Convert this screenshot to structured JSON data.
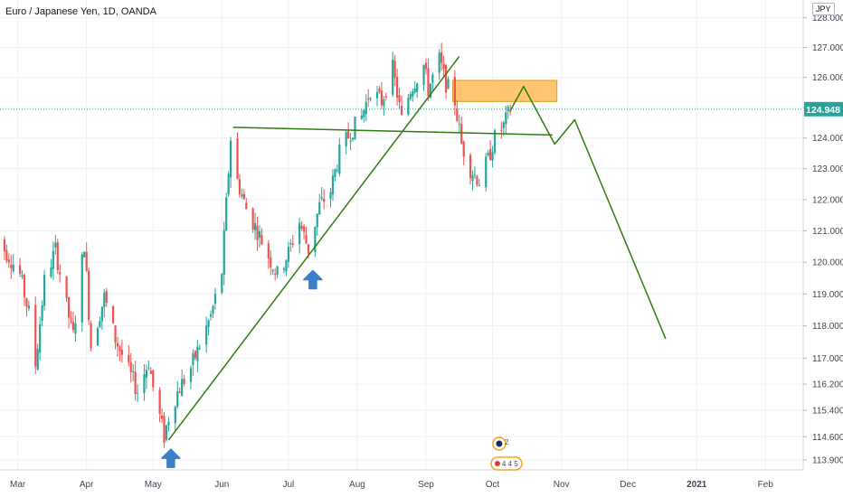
{
  "legend": {
    "title": "Euro / Japanese Yen, 1D, OANDA"
  },
  "currency_badge": "JPY",
  "price_label": {
    "value": "124.948",
    "color": "#26a69a"
  },
  "colors": {
    "up": "#26a69a",
    "down": "#ef5350",
    "drawing": "#2e7d0f",
    "zone_fill": "#ffb74d",
    "zone_border": "#d4a017",
    "arrow": "#3a7fc8",
    "grid": "#eef0f4",
    "axis_text": "#434651"
  },
  "event_markers": {
    "top_count": "2",
    "bottom_counts": "4 4 5"
  },
  "chart_data": {
    "type": "candlestick",
    "symbol": "EURJPY",
    "y_scale": "log",
    "ylim": [
      113.6,
      128.6
    ],
    "yticks": [
      "128.000",
      "127.000",
      "126.000",
      "125.000",
      "124.000",
      "123.000",
      "122.000",
      "121.000",
      "120.000",
      "119.000",
      "118.000",
      "117.000",
      "116.200",
      "115.400",
      "114.600",
      "113.900"
    ],
    "xticks": [
      {
        "label": "Mar",
        "date": "2020-03-01"
      },
      {
        "label": "Apr",
        "date": "2020-04-01"
      },
      {
        "label": "May",
        "date": "2020-05-01"
      },
      {
        "label": "Jun",
        "date": "2020-06-01"
      },
      {
        "label": "Jul",
        "date": "2020-07-01"
      },
      {
        "label": "Aug",
        "date": "2020-08-01"
      },
      {
        "label": "Sep",
        "date": "2020-09-01"
      },
      {
        "label": "Oct",
        "date": "2020-10-01"
      },
      {
        "label": "Nov",
        "date": "2020-11-01"
      },
      {
        "label": "Dec",
        "date": "2020-12-01"
      },
      {
        "label": "2021",
        "date": "2021-01-01"
      },
      {
        "label": "Feb",
        "date": "2021-02-01"
      }
    ],
    "xlim": [
      "2020-02-22",
      "2021-02-18"
    ],
    "last_price": 124.948,
    "price_path": [
      [
        "2020-02-20",
        120.8
      ],
      [
        "2020-02-26",
        120.2
      ],
      [
        "2020-03-02",
        119.6
      ],
      [
        "2020-03-06",
        118.4
      ],
      [
        "2020-03-09",
        116.8
      ],
      [
        "2020-03-13",
        119.4
      ],
      [
        "2020-03-18",
        120.4
      ],
      [
        "2020-03-23",
        118.6
      ],
      [
        "2020-03-26",
        117.7
      ],
      [
        "2020-03-31",
        120.6
      ],
      [
        "2020-04-03",
        117.4
      ],
      [
        "2020-04-09",
        118.9
      ],
      [
        "2020-04-14",
        117.6
      ],
      [
        "2020-04-20",
        116.6
      ],
      [
        "2020-04-24",
        116.0
      ],
      [
        "2020-04-29",
        116.9
      ],
      [
        "2020-05-01",
        116.1
      ],
      [
        "2020-05-06",
        114.6
      ],
      [
        "2020-05-09",
        115.5
      ],
      [
        "2020-05-13",
        116.1
      ],
      [
        "2020-05-18",
        116.7
      ],
      [
        "2020-05-22",
        117.4
      ],
      [
        "2020-05-27",
        118.3
      ],
      [
        "2020-06-01",
        119.7
      ],
      [
        "2020-06-05",
        124.0
      ],
      [
        "2020-06-08",
        122.6
      ],
      [
        "2020-06-12",
        121.7
      ],
      [
        "2020-06-17",
        121.0
      ],
      [
        "2020-06-22",
        120.2
      ],
      [
        "2020-06-26",
        119.6
      ],
      [
        "2020-07-01",
        120.3
      ],
      [
        "2020-07-06",
        121.3
      ],
      [
        "2020-07-10",
        120.4
      ],
      [
        "2020-07-15",
        121.8
      ],
      [
        "2020-07-20",
        122.3
      ],
      [
        "2020-07-24",
        123.5
      ],
      [
        "2020-07-29",
        124.2
      ],
      [
        "2020-08-03",
        124.7
      ],
      [
        "2020-08-07",
        125.6
      ],
      [
        "2020-08-12",
        125.2
      ],
      [
        "2020-08-17",
        126.3
      ],
      [
        "2020-08-21",
        124.6
      ],
      [
        "2020-08-25",
        125.6
      ],
      [
        "2020-08-31",
        126.4
      ],
      [
        "2020-09-02",
        125.6
      ],
      [
        "2020-09-07",
        126.6
      ],
      [
        "2020-09-10",
        125.8
      ],
      [
        "2020-09-14",
        125.2
      ],
      [
        "2020-09-17",
        123.8
      ],
      [
        "2020-09-21",
        123.0
      ],
      [
        "2020-09-25",
        122.6
      ],
      [
        "2020-09-29",
        123.3
      ],
      [
        "2020-10-02",
        124.0
      ],
      [
        "2020-10-06",
        124.4
      ],
      [
        "2020-10-09",
        124.95
      ]
    ],
    "annotations": {
      "trendline": {
        "from": [
          "2020-05-08",
          114.5
        ],
        "to": [
          "2020-09-16",
          126.7
        ]
      },
      "support_line": {
        "from": [
          "2020-06-06",
          124.35
        ],
        "to": [
          "2020-10-28",
          124.1
        ]
      },
      "supply_zone": {
        "x": [
          "2020-09-13",
          "2020-10-30"
        ],
        "y": [
          125.2,
          125.9
        ]
      },
      "projection": [
        [
          "2020-10-09",
          124.9
        ],
        [
          "2020-10-15",
          125.7
        ],
        [
          "2020-10-29",
          123.8
        ],
        [
          "2020-11-07",
          124.6
        ],
        [
          "2020-12-18",
          117.6
        ]
      ],
      "up_arrows": [
        [
          "2020-05-09",
          113.95
        ],
        [
          "2020-07-12",
          119.45
        ]
      ]
    }
  }
}
